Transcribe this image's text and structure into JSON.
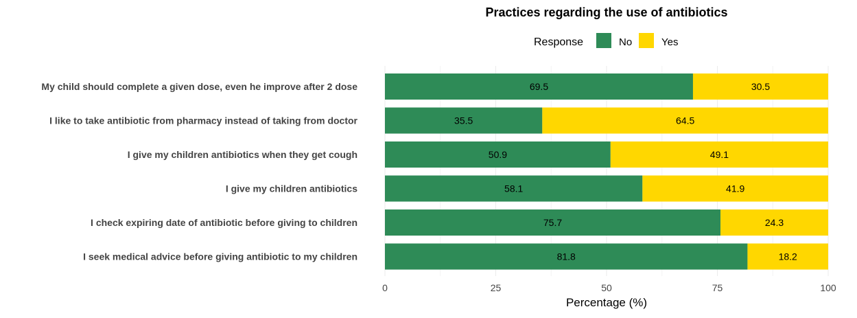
{
  "chart_data": {
    "type": "bar",
    "orientation": "horizontal",
    "stacked": true,
    "title": "Practices regarding the use of antibiotics",
    "xlabel": "Percentage (%)",
    "ylabel": "",
    "xlim": [
      0,
      100
    ],
    "xticks": [
      "0",
      "25",
      "50",
      "75",
      "100"
    ],
    "grid": true,
    "legend": {
      "title": "Response",
      "position": "top"
    },
    "categories": [
      "My child should complete a given dose, even he improve after 2 dose",
      "I like to take antibiotic from pharmacy instead of taking from doctor",
      "I give my children antibiotics when they get cough",
      "I give my children antibiotics",
      "I check expiring date of antibiotic before giving to children",
      "I seek medical advice before giving antibiotic to my children"
    ],
    "series": [
      {
        "name": "No",
        "color": "#2e8b57",
        "values": [
          69.5,
          35.5,
          50.9,
          58.1,
          75.7,
          81.8
        ]
      },
      {
        "name": "Yes",
        "color": "#ffd700",
        "values": [
          30.5,
          64.5,
          49.1,
          41.9,
          24.3,
          18.2
        ]
      }
    ]
  }
}
